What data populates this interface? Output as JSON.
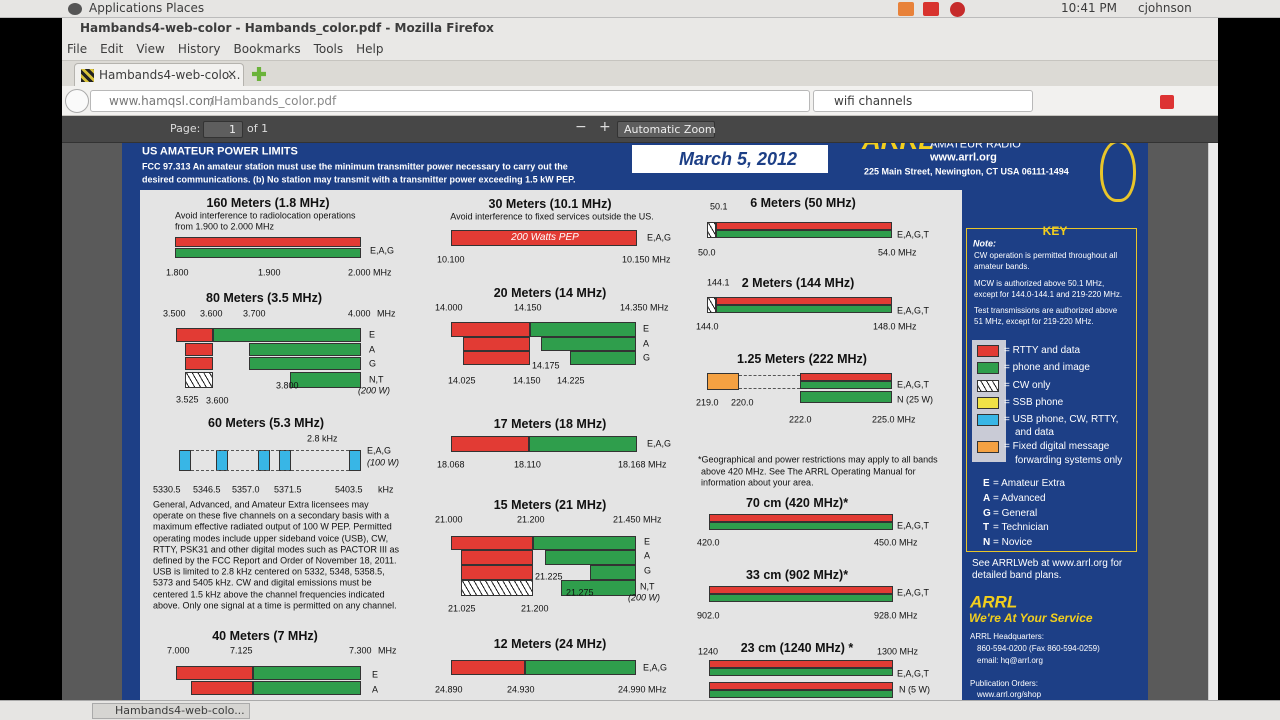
{
  "desktop": {
    "menus": [
      "Applications",
      "Places"
    ],
    "time": "10:41 PM",
    "user": "cjohnson"
  },
  "window": {
    "title": "Hambands4-web-color - Hambands_color.pdf - Mozilla Firefox"
  },
  "menu": [
    "File",
    "Edit",
    "View",
    "History",
    "Bookmarks",
    "Tools",
    "Help"
  ],
  "tab": {
    "title": "Hambands4-web-colo..."
  },
  "nav": {
    "url_host": "www.hamqsl.com",
    "url_path": "/Hambands_color.pdf",
    "search": "wifi channels"
  },
  "pdf_toolbar": {
    "page_label": "Page:",
    "page": "1",
    "of": "of 1",
    "zoom": "Automatic Zoom"
  },
  "doc": {
    "header": {
      "title": "US AMATEUR POWER LIMITS",
      "fcc": [
        "FCC 97.313   An amateur station must use the minimum transmitter power necessary to carry out the",
        "desired communications.   (b) No station may transmit with a transmitter power exceeding 1.5 kW PEP."
      ],
      "date": "March 5, 2012",
      "brand": "ARRL",
      "brand_sub": "AMATEUR RADIO",
      "web": "www.arrl.org",
      "address": "225 Main Street, Newington, CT USA  06111-1494"
    },
    "bands": [
      {
        "title": "160 Meters (1.8 MHz)",
        "note": [
          "Avoid interference to radiolocation operations",
          "from 1.900 to 2.000 MHz"
        ],
        "labels": [
          "E,A,G",
          "1.800",
          "1.900",
          "2.000 MHz"
        ]
      },
      {
        "title": "80 Meters (3.5 MHz)",
        "note": [],
        "labels": [
          "3.500",
          "3.600",
          "3.700",
          "4.000",
          "MHz",
          "E",
          "A",
          "G",
          "N,T",
          "(200 W)",
          "3.800",
          "3.525",
          "3.600"
        ]
      },
      {
        "title": "60 Meters (5.3 MHz)",
        "note": [
          "General, Advanced, and Amateur Extra licensees may",
          "operate on these five channels on a secondary basis with a",
          "maximum effective radiated output of 100 W PEP. Permitted",
          "operating modes include upper sideband voice (USB), CW,",
          "RTTY, PSK31 and other digital modes such as PACTOR III as",
          "defined by the FCC Report and Order of November 18, 2011.",
          "USB is limited to 2.8 kHz centered on 5332, 5348, 5358.5,",
          "5373 and 5405 kHz. CW and digital emissions must be",
          "centered 1.5 kHz above the channel frequencies indicated",
          "above. Only one signal at a time is permitted on any channel."
        ],
        "labels": [
          "2.8 kHz",
          "E,A,G",
          "(100 W)",
          "5330.5",
          "5346.5",
          "5357.0",
          "5371.5",
          "5403.5",
          "kHz"
        ]
      },
      {
        "title": "40 Meters (7 MHz)",
        "note": [],
        "labels": [
          "7.000",
          "7.125",
          "7.300",
          "MHz",
          "E",
          "A"
        ]
      },
      {
        "title": "30 Meters (10.1 MHz)",
        "note": [
          "Avoid interference to fixed services outside the US."
        ],
        "labels": [
          "200 Watts PEP",
          "E,A,G",
          "10.100",
          "10.150 MHz"
        ]
      },
      {
        "title": "20 Meters (14 MHz)",
        "note": [],
        "labels": [
          "14.000",
          "14.150",
          "14.350 MHz",
          "E",
          "A",
          "G",
          "14.175",
          "14.025",
          "14.150",
          "14.225"
        ]
      },
      {
        "title": "17 Meters (18 MHz)",
        "note": [],
        "labels": [
          "E,A,G",
          "18.068",
          "18.110",
          "18.168 MHz"
        ]
      },
      {
        "title": "15 Meters (21 MHz)",
        "note": [],
        "labels": [
          "21.000",
          "21.200",
          "21.450 MHz",
          "E",
          "A",
          "G",
          "N,T",
          "(200 W)",
          "21.225",
          "21.275",
          "21.025",
          "21.200"
        ]
      },
      {
        "title": "12 Meters (24 MHz)",
        "note": [],
        "labels": [
          "E,A,G",
          "24.890",
          "24.930",
          "24.990 MHz"
        ]
      },
      {
        "title": "6 Meters (50 MHz)",
        "note": [],
        "labels": [
          "50.1",
          "E,A,G,T",
          "50.0",
          "54.0 MHz"
        ]
      },
      {
        "title": "2 Meters (144 MHz)",
        "note": [],
        "labels": [
          "144.1",
          "E,A,G,T",
          "144.0",
          "148.0 MHz"
        ]
      },
      {
        "title": "1.25 Meters (222 MHz)",
        "note": [],
        "labels": [
          "E,A,G,T",
          "N (25 W)",
          "219.0",
          "220.0",
          "222.0",
          "225.0 MHz"
        ]
      },
      {
        "title": "70 cm (420 MHz)*",
        "note": [],
        "labels": [
          "E,A,G,T",
          "420.0",
          "450.0 MHz"
        ]
      },
      {
        "title": "33 cm (902 MHz)*",
        "note": [],
        "labels": [
          "E,A,G,T",
          "902.0",
          "928.0 MHz"
        ]
      },
      {
        "title": "23 cm (1240 MHz) *",
        "note": [],
        "labels": [
          "1240",
          "1300 MHz",
          "E,A,G,T",
          "N (5 W)"
        ]
      }
    ],
    "footnote": [
      "*Geographical and power restrictions may apply to all bands",
      "above 420 MHz. See The ARRL Operating Manual for",
      "information about your area."
    ],
    "key": {
      "title": "KEY",
      "note_label": "Note:",
      "notes": [
        "CW operation is permitted throughout all",
        "amateur bands.",
        "MCW is authorized above 50.1 MHz,",
        "except for 144.0-144.1 and 219-220 MHz.",
        "Test transmissions are authorized above",
        "51 MHz, except for 219-220 MHz."
      ],
      "legend": [
        "= RTTY and data",
        "= phone and image",
        "= CW only",
        "= SSB phone",
        "= USB phone, CW, RTTY,",
        "and  data",
        "= Fixed digital message",
        "forwarding systems only"
      ],
      "licenses": [
        {
          "letter": "E",
          "name": "= Amateur Extra"
        },
        {
          "letter": "A",
          "name": "= Advanced"
        },
        {
          "letter": "G",
          "name": "= General"
        },
        {
          "letter": "T",
          "name": "= Technician"
        },
        {
          "letter": "N",
          "name": "= Novice"
        }
      ]
    },
    "see": [
      "See ARRLWeb at www.arrl.org for",
      "detailed band plans."
    ],
    "arrl": "ARRL",
    "slogan": "We're At Your Service",
    "hq": [
      "ARRL Headquarters:",
      "860-594-0200  (Fax 860-594-0259)",
      "email:  hq@arrl.org",
      "Publication Orders:",
      "www.arrl.org/shop"
    ]
  },
  "taskbar": {
    "item": "Hambands4-web-colo..."
  }
}
